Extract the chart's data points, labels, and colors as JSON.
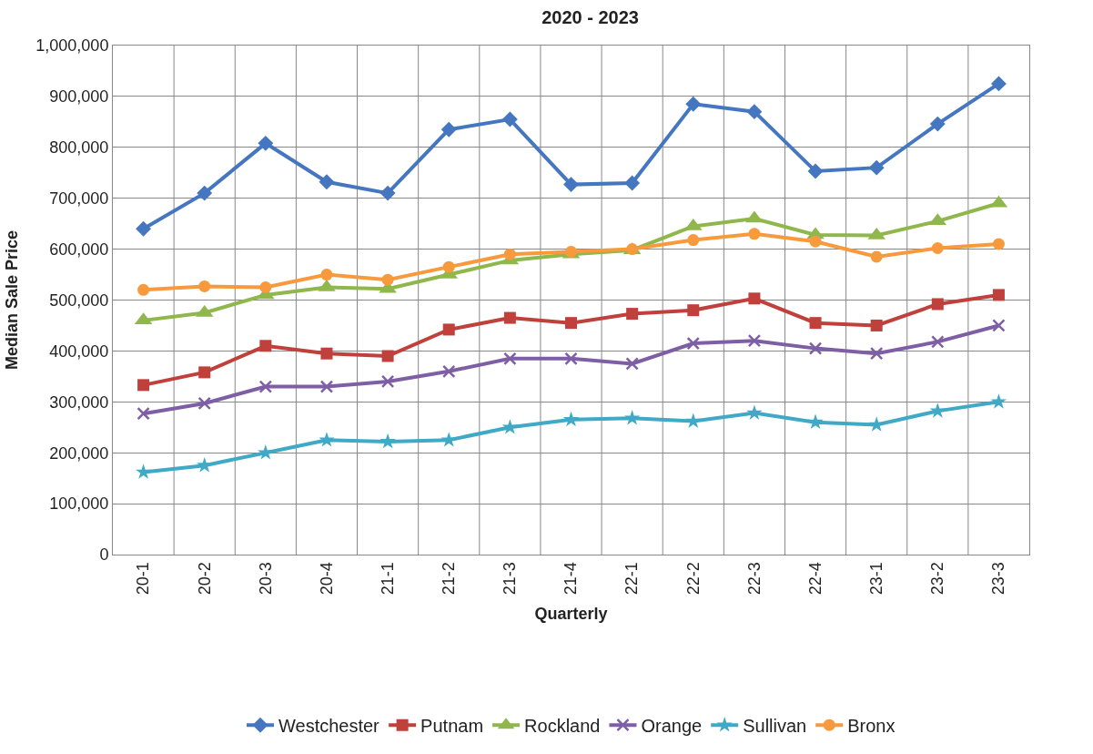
{
  "chart_data": {
    "type": "line",
    "title": "2020 - 2023",
    "xlabel": "Quarterly",
    "ylabel": "Median Sale Price",
    "categories": [
      "20-1",
      "20-2",
      "20-3",
      "20-4",
      "21-1",
      "21-2",
      "21-3",
      "21-4",
      "22-1",
      "22-2",
      "22-3",
      "22-4",
      "23-1",
      "23-2",
      "23-3"
    ],
    "series": [
      {
        "name": "Westchester",
        "color": "#4577c0",
        "marker": "diamond",
        "values": [
          640000,
          710000,
          808000,
          732000,
          710000,
          835000,
          855000,
          727000,
          730000,
          885000,
          870000,
          753000,
          760000,
          846000,
          925000
        ]
      },
      {
        "name": "Putnam",
        "color": "#c0403c",
        "marker": "square",
        "values": [
          333000,
          358000,
          410000,
          395000,
          390000,
          442000,
          465000,
          455000,
          473000,
          480000,
          503000,
          455000,
          450000,
          492000,
          510000
        ]
      },
      {
        "name": "Rockland",
        "color": "#8fb74b",
        "marker": "triangle",
        "values": [
          460000,
          475000,
          510000,
          525000,
          522000,
          550000,
          578000,
          590000,
          598000,
          645000,
          660000,
          628000,
          627000,
          655000,
          690000
        ]
      },
      {
        "name": "Orange",
        "color": "#7e5fa6",
        "marker": "cross",
        "values": [
          277000,
          297000,
          330000,
          330000,
          340000,
          360000,
          385000,
          385000,
          375000,
          415000,
          420000,
          405000,
          395000,
          418000,
          450000
        ]
      },
      {
        "name": "Sullivan",
        "color": "#3fa9c6",
        "marker": "star",
        "values": [
          162000,
          175000,
          200000,
          225000,
          222000,
          225000,
          250000,
          265000,
          268000,
          262000,
          278000,
          260000,
          255000,
          282000,
          300000
        ]
      },
      {
        "name": "Bronx",
        "color": "#f79a3e",
        "marker": "circle",
        "values": [
          520000,
          527000,
          525000,
          550000,
          540000,
          565000,
          590000,
          595000,
          600000,
          618000,
          630000,
          615000,
          585000,
          602000,
          610000
        ]
      }
    ],
    "ylim": [
      0,
      1000000
    ],
    "yticks": [
      {
        "value": 0,
        "label": "0"
      },
      {
        "value": 100000,
        "label": "100,000"
      },
      {
        "value": 200000,
        "label": "200,000"
      },
      {
        "value": 300000,
        "label": "300,000"
      },
      {
        "value": 400000,
        "label": "400,000"
      },
      {
        "value": 500000,
        "label": "500,000"
      },
      {
        "value": 600000,
        "label": "600,000"
      },
      {
        "value": 700000,
        "label": "700,000"
      },
      {
        "value": 800000,
        "label": "800,000"
      },
      {
        "value": 900000,
        "label": "900,000"
      },
      {
        "value": 1000000,
        "label": "1,000,000"
      }
    ],
    "grid": true,
    "legend": "bottom",
    "line_style": "solid"
  }
}
